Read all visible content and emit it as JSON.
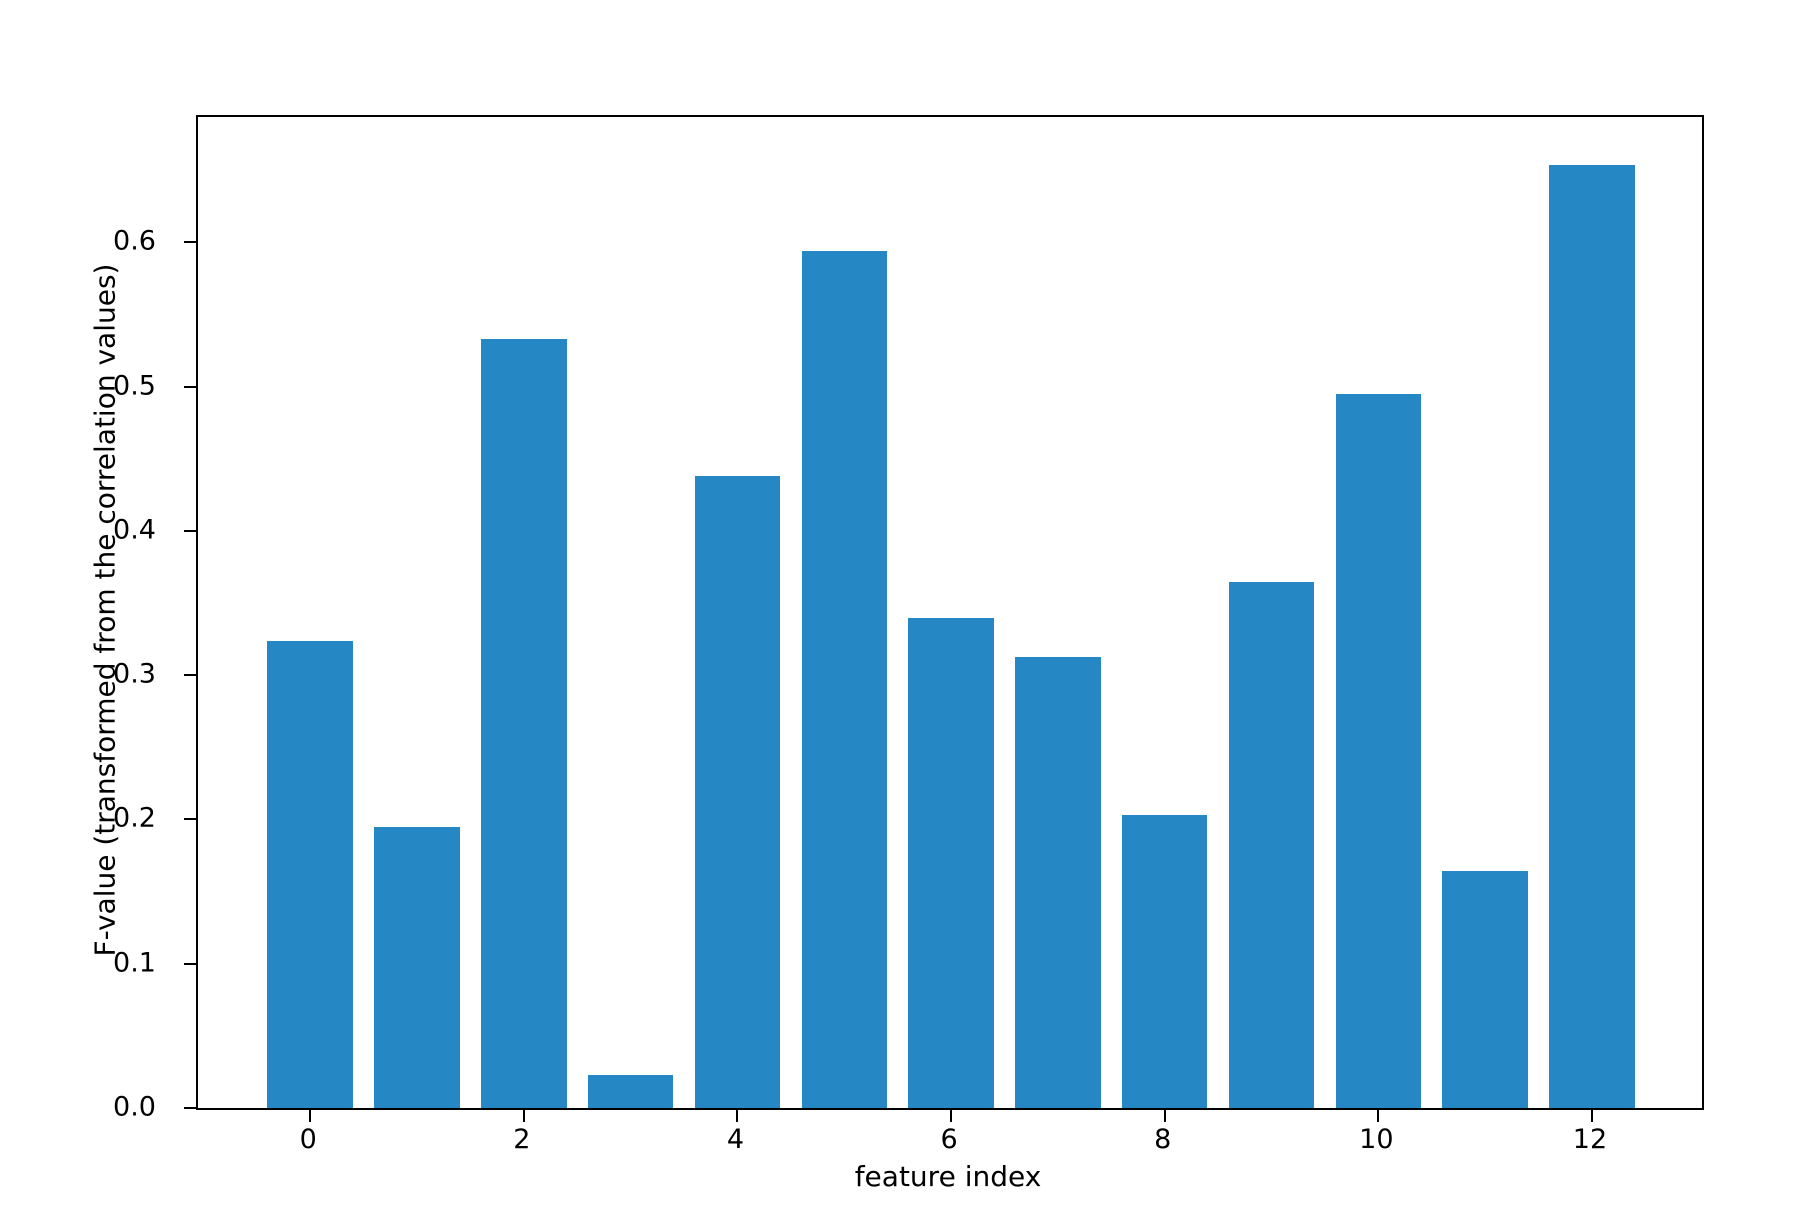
{
  "figure": {
    "background": "#ffffff",
    "axis_color": "#000000",
    "text_color": "#000000"
  },
  "chart_data": {
    "type": "bar",
    "title": "",
    "xlabel": "feature index",
    "ylabel": "F-value (transformed from the correlation values)",
    "categories": [
      0,
      1,
      2,
      3,
      4,
      5,
      6,
      7,
      8,
      9,
      10,
      11,
      12
    ],
    "values": [
      0.324,
      0.195,
      0.533,
      0.023,
      0.438,
      0.594,
      0.34,
      0.313,
      0.203,
      0.365,
      0.495,
      0.164,
      0.654
    ],
    "bar_color": "#2587c4",
    "bar_width_data_units": 0.8,
    "xticks": {
      "values": [
        0,
        2,
        4,
        6,
        8,
        10,
        12
      ],
      "labels": [
        "0",
        "2",
        "4",
        "6",
        "8",
        "10",
        "12"
      ]
    },
    "yticks": {
      "values": [
        0.0,
        0.1,
        0.2,
        0.3,
        0.4,
        0.5,
        0.6
      ],
      "labels": [
        "0.0",
        "0.1",
        "0.2",
        "0.3",
        "0.4",
        "0.5",
        "0.6"
      ]
    },
    "xlim": [
      -1.05,
      13.03
    ],
    "ylim": [
      0,
      0.687
    ],
    "grid": false,
    "legend": null
  }
}
